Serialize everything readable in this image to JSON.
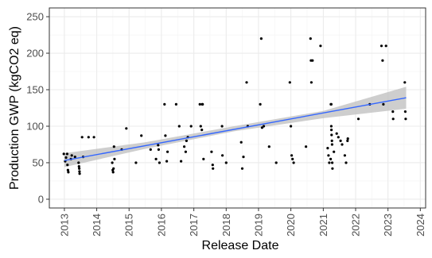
{
  "chart_data": {
    "type": "scatter",
    "title": "",
    "xlabel": "Release Date",
    "ylabel": "Production GWP (kgCO2 eq)",
    "xlim": [
      "2012-07-15",
      "2024-03-01"
    ],
    "ylim": [
      -12,
      262
    ],
    "x_ticks": [
      "2013",
      "2014",
      "2015",
      "2016",
      "2017",
      "2018",
      "2019",
      "2020",
      "2021",
      "2022",
      "2023",
      "2024"
    ],
    "y_ticks": [
      0,
      50,
      100,
      150,
      200,
      250
    ],
    "grid": true,
    "legend": "none",
    "colors": {
      "points": "#000000",
      "trend_line": "#3366FF",
      "confidence_band": "#bdbdbd",
      "grid": "#ebebeb",
      "panel_border": "#333333"
    },
    "points": [
      {
        "x": "2012-12-25",
        "y": 62
      },
      {
        "x": "2013-01-10",
        "y": 52
      },
      {
        "x": "2013-01-20",
        "y": 57
      },
      {
        "x": "2013-02-01",
        "y": 62
      },
      {
        "x": "2013-02-05",
        "y": 47
      },
      {
        "x": "2013-02-10",
        "y": 40
      },
      {
        "x": "2013-02-15",
        "y": 37
      },
      {
        "x": "2013-03-15",
        "y": 55
      },
      {
        "x": "2013-03-25",
        "y": 60
      },
      {
        "x": "2013-05-01",
        "y": 58
      },
      {
        "x": "2013-06-10",
        "y": 50
      },
      {
        "x": "2013-06-15",
        "y": 45
      },
      {
        "x": "2013-06-18",
        "y": 42
      },
      {
        "x": "2013-06-20",
        "y": 38
      },
      {
        "x": "2013-06-22",
        "y": 35
      },
      {
        "x": "2013-07-20",
        "y": 85
      },
      {
        "x": "2013-08-01",
        "y": 58
      },
      {
        "x": "2013-10-01",
        "y": 85
      },
      {
        "x": "2013-12-01",
        "y": 85
      },
      {
        "x": "2014-06-25",
        "y": 50
      },
      {
        "x": "2014-07-01",
        "y": 40
      },
      {
        "x": "2014-07-05",
        "y": 37
      },
      {
        "x": "2014-07-10",
        "y": 42
      },
      {
        "x": "2014-07-15",
        "y": 72
      },
      {
        "x": "2014-07-20",
        "y": 55
      },
      {
        "x": "2014-10-10",
        "y": 68
      },
      {
        "x": "2014-12-01",
        "y": 97
      },
      {
        "x": "2015-03-20",
        "y": 50
      },
      {
        "x": "2015-05-20",
        "y": 87
      },
      {
        "x": "2015-09-01",
        "y": 68
      },
      {
        "x": "2015-11-01",
        "y": 55
      },
      {
        "x": "2015-11-25",
        "y": 74
      },
      {
        "x": "2015-12-01",
        "y": 68
      },
      {
        "x": "2015-12-10",
        "y": 50
      },
      {
        "x": "2016-02-05",
        "y": 130
      },
      {
        "x": "2016-02-15",
        "y": 87
      },
      {
        "x": "2016-03-01",
        "y": 52
      },
      {
        "x": "2016-03-10",
        "y": 65
      },
      {
        "x": "2016-06-15",
        "y": 130
      },
      {
        "x": "2016-07-20",
        "y": 100
      },
      {
        "x": "2016-08-10",
        "y": 52
      },
      {
        "x": "2016-09-15",
        "y": 72
      },
      {
        "x": "2016-10-01",
        "y": 65
      },
      {
        "x": "2016-10-10",
        "y": 80
      },
      {
        "x": "2016-10-25",
        "y": 85
      },
      {
        "x": "2016-12-01",
        "y": 100
      },
      {
        "x": "2017-03-10",
        "y": 130
      },
      {
        "x": "2017-03-20",
        "y": 100
      },
      {
        "x": "2017-04-01",
        "y": 95
      },
      {
        "x": "2017-04-05",
        "y": 130
      },
      {
        "x": "2017-04-10",
        "y": 130
      },
      {
        "x": "2017-04-20",
        "y": 55
      },
      {
        "x": "2017-07-20",
        "y": 65
      },
      {
        "x": "2017-08-01",
        "y": 47
      },
      {
        "x": "2017-08-05",
        "y": 42
      },
      {
        "x": "2017-11-15",
        "y": 100
      },
      {
        "x": "2017-11-20",
        "y": 60
      },
      {
        "x": "2018-01-01",
        "y": 50
      },
      {
        "x": "2018-06-20",
        "y": 78
      },
      {
        "x": "2018-07-01",
        "y": 42
      },
      {
        "x": "2018-07-15",
        "y": 58
      },
      {
        "x": "2018-08-20",
        "y": 160
      },
      {
        "x": "2018-09-01",
        "y": 100
      },
      {
        "x": "2019-01-20",
        "y": 130
      },
      {
        "x": "2019-02-01",
        "y": 220
      },
      {
        "x": "2019-02-10",
        "y": 98
      },
      {
        "x": "2019-03-01",
        "y": 100
      },
      {
        "x": "2019-05-01",
        "y": 72
      },
      {
        "x": "2019-07-20",
        "y": 50
      },
      {
        "x": "2019-12-20",
        "y": 160
      },
      {
        "x": "2020-01-01",
        "y": 100
      },
      {
        "x": "2020-01-10",
        "y": 60
      },
      {
        "x": "2020-01-20",
        "y": 55
      },
      {
        "x": "2020-02-01",
        "y": 50
      },
      {
        "x": "2020-08-10",
        "y": 220
      },
      {
        "x": "2020-08-15",
        "y": 190
      },
      {
        "x": "2020-08-20",
        "y": 160
      },
      {
        "x": "2020-09-01",
        "y": 190
      },
      {
        "x": "2020-12-01",
        "y": 210
      },
      {
        "x": "2020-06-20",
        "y": 72
      },
      {
        "x": "2021-02-20",
        "y": 70
      },
      {
        "x": "2021-03-01",
        "y": 60
      },
      {
        "x": "2021-03-10",
        "y": 50
      },
      {
        "x": "2021-03-25",
        "y": 55
      },
      {
        "x": "2021-03-28",
        "y": 130
      },
      {
        "x": "2021-04-01",
        "y": 130
      },
      {
        "x": "2021-04-01",
        "y": 100
      },
      {
        "x": "2021-04-03",
        "y": 95
      },
      {
        "x": "2021-04-05",
        "y": 88
      },
      {
        "x": "2021-04-08",
        "y": 80
      },
      {
        "x": "2021-04-10",
        "y": 75
      },
      {
        "x": "2021-04-12",
        "y": 50
      },
      {
        "x": "2021-04-15",
        "y": 42
      },
      {
        "x": "2021-05-01",
        "y": 65
      },
      {
        "x": "2021-06-01",
        "y": 90
      },
      {
        "x": "2021-06-20",
        "y": 85
      },
      {
        "x": "2021-07-15",
        "y": 80
      },
      {
        "x": "2021-08-01",
        "y": 75
      },
      {
        "x": "2021-09-01",
        "y": 60
      },
      {
        "x": "2021-09-15",
        "y": 50
      },
      {
        "x": "2021-10-01",
        "y": 80
      },
      {
        "x": "2021-10-05",
        "y": 83
      },
      {
        "x": "2022-02-01",
        "y": 110
      },
      {
        "x": "2022-06-10",
        "y": 130
      },
      {
        "x": "2022-10-20",
        "y": 210
      },
      {
        "x": "2022-11-01",
        "y": 190
      },
      {
        "x": "2022-11-10",
        "y": 130
      },
      {
        "x": "2022-12-10",
        "y": 210
      },
      {
        "x": "2023-02-25",
        "y": 120
      },
      {
        "x": "2023-03-01",
        "y": 110
      },
      {
        "x": "2023-07-10",
        "y": 160
      },
      {
        "x": "2023-07-15",
        "y": 120
      },
      {
        "x": "2023-07-20",
        "y": 110
      }
    ],
    "trend_line": {
      "x": [
        "2013-01-01",
        "2023-07-25"
      ],
      "y": [
        53,
        139
      ]
    },
    "confidence_band": {
      "x": [
        "2013-01-01",
        "2015-07-01",
        "2018-04-01",
        "2021-01-01",
        "2023-07-25"
      ],
      "lower": [
        44,
        69,
        93,
        111,
        124
      ],
      "upper": [
        63,
        78,
        100,
        121,
        154
      ]
    }
  }
}
